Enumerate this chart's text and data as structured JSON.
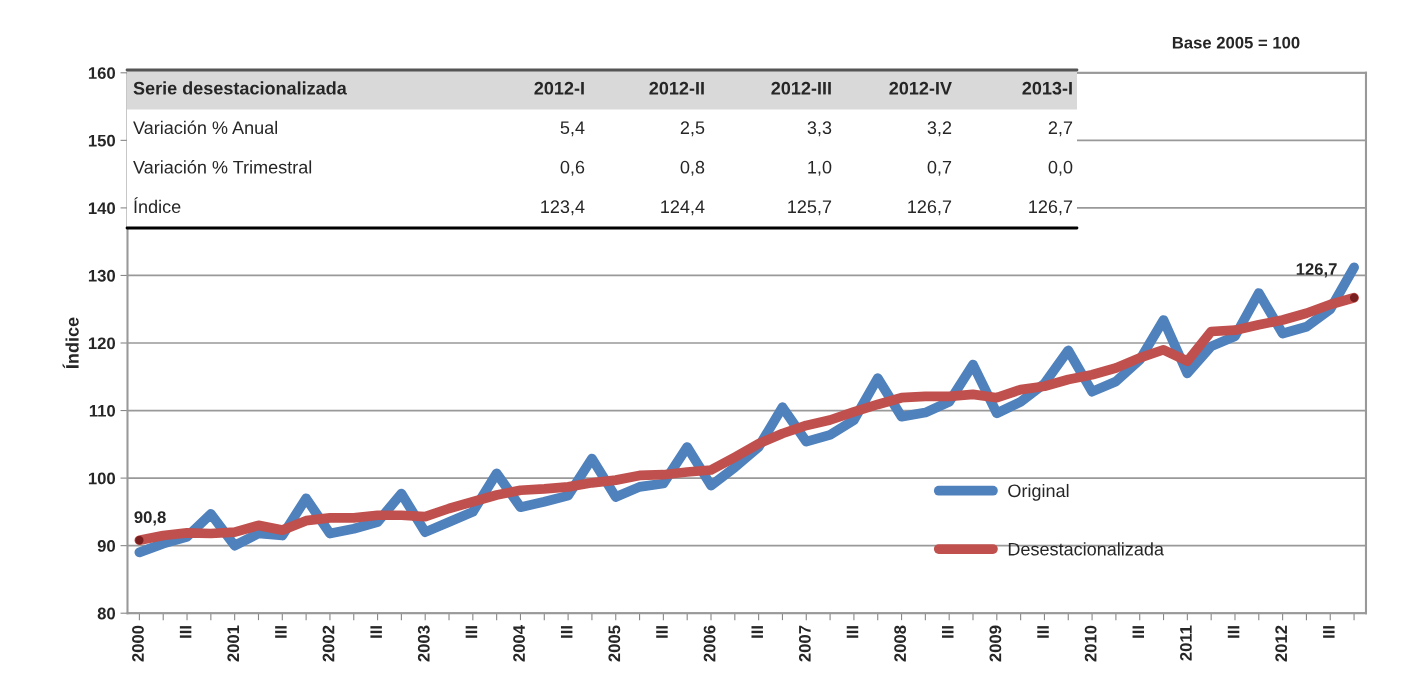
{
  "chart_data": {
    "type": "line",
    "ylabel": "Índice",
    "categories": [
      "2000",
      null,
      "III",
      null,
      "2001",
      null,
      "III",
      null,
      "2002",
      null,
      "III",
      null,
      "2003",
      null,
      "III",
      null,
      "2004",
      null,
      "III",
      null,
      "2005",
      null,
      "III",
      null,
      "2006",
      null,
      "III",
      null,
      "2007",
      null,
      "III",
      null,
      "2008",
      null,
      "III",
      null,
      "2009",
      null,
      "III",
      null,
      "2010",
      null,
      "III",
      null,
      "2011",
      null,
      "III",
      null,
      "2012",
      null,
      "III",
      null
    ],
    "series": [
      {
        "name": "Original",
        "color": "#4f81bd",
        "values": [
          89.0,
          90.3,
          91.3,
          94.7,
          90.0,
          91.8,
          91.5,
          97.0,
          91.8,
          92.5,
          93.5,
          97.7,
          92.0,
          93.5,
          95.0,
          100.7,
          95.7,
          96.5,
          97.4,
          102.9,
          97.2,
          98.7,
          99.2,
          104.6,
          98.9,
          101.6,
          104.6,
          110.5,
          105.4,
          106.4,
          108.6,
          114.8,
          109.1,
          109.7,
          111.3,
          116.8,
          109.6,
          111.3,
          114.0,
          118.9,
          112.8,
          114.3,
          117.5,
          123.4,
          115.5,
          119.5,
          121.0,
          127.4,
          121.4,
          122.4,
          125.0,
          131.2
        ]
      },
      {
        "name": "Desestacionalizada",
        "color": "#c0504d",
        "values": [
          90.8,
          91.5,
          91.9,
          91.8,
          92.0,
          93.0,
          92.3,
          93.7,
          94.1,
          94.1,
          94.5,
          94.5,
          94.3,
          95.5,
          96.5,
          97.5,
          98.2,
          98.4,
          98.7,
          99.3,
          99.7,
          100.4,
          100.5,
          100.9,
          101.2,
          103.1,
          105.1,
          106.6,
          107.8,
          108.6,
          109.8,
          110.9,
          111.9,
          112.1,
          112.1,
          112.4,
          111.9,
          113.1,
          113.6,
          114.6,
          115.3,
          116.3,
          117.8,
          119.0,
          117.3,
          121.7,
          121.9,
          122.7,
          123.4,
          124.4,
          125.7,
          126.7
        ],
        "value_labels": [
          "90,8",
          null,
          null,
          null,
          null,
          null,
          null,
          null,
          null,
          null,
          null,
          null,
          null,
          null,
          null,
          null,
          null,
          null,
          null,
          null,
          null,
          null,
          null,
          null,
          null,
          null,
          null,
          null,
          null,
          null,
          null,
          null,
          null,
          null,
          null,
          null,
          null,
          null,
          null,
          null,
          null,
          null,
          null,
          null,
          null,
          null,
          null,
          null,
          null,
          null,
          null,
          "126,7"
        ]
      }
    ],
    "ylim": [
      80,
      160
    ],
    "yticks": [
      80,
      90,
      100,
      110,
      120,
      130,
      140,
      150,
      160
    ],
    "grid": "y",
    "legend": "lower right",
    "annotations": [
      "Base 2005 = 100",
      "Serie desestacionalizada",
      "2012-I",
      "2012-II",
      "2012-III",
      "2012-IV",
      "2013-I",
      "Variación % Anual",
      "5,4",
      "2,5",
      "3,3",
      "3,2",
      "2,7",
      "Variación % Trimestral",
      "0,6",
      "0,8",
      "1,0",
      "0,7",
      "0,0",
      "Índice",
      "123,4",
      "124,4",
      "125,7",
      "126,7",
      "126,7"
    ]
  }
}
